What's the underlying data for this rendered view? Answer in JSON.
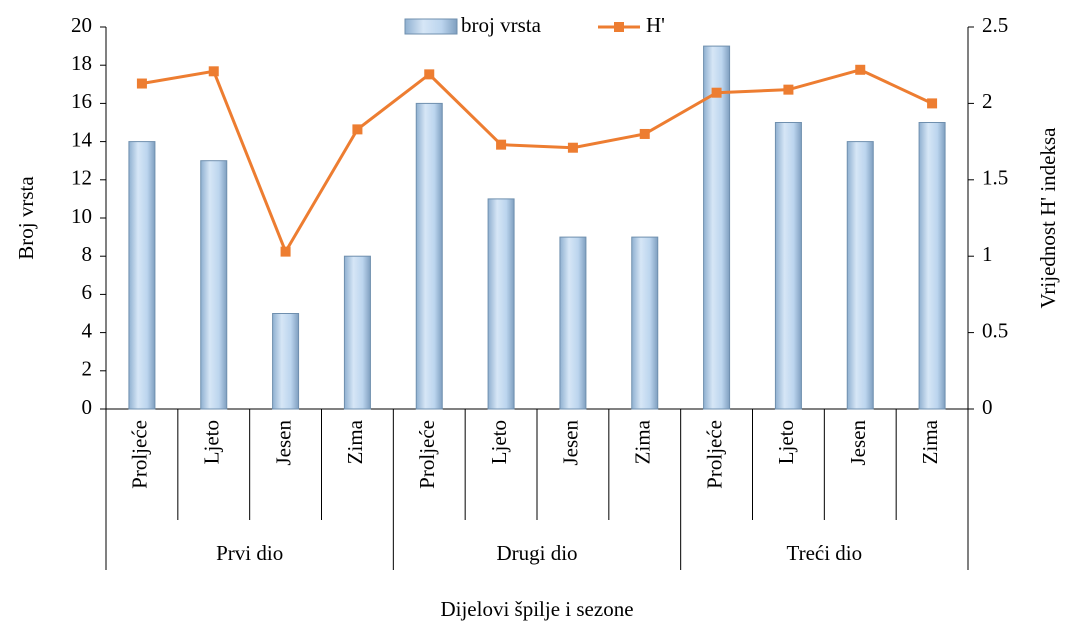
{
  "chart_data": {
    "type": "bar",
    "x_label": "Dijelovi špilje i sezone",
    "y_label": "Broj vrsta",
    "y2_label": "Vrijednost H' indeksa",
    "categories": [
      "Proljeće",
      "Ljeto",
      "Jesen",
      "Zima",
      "Proljeće",
      "Ljeto",
      "Jesen",
      "Zima",
      "Proljeće",
      "Ljeto",
      "Jesen",
      "Zima"
    ],
    "groups": [
      "Prvi dio",
      "Drugi dio",
      "Treći dio"
    ],
    "series": [
      {
        "name": "broj vrsta",
        "type": "bar",
        "color": "#bdd7ee",
        "values": [
          14,
          13,
          5,
          8,
          16,
          11,
          9,
          9,
          19,
          15,
          14,
          15
        ]
      },
      {
        "name": "H'",
        "type": "line",
        "axis": "y2",
        "color": "#ed7d31",
        "values": [
          2.13,
          2.21,
          1.03,
          1.83,
          2.19,
          1.73,
          1.71,
          1.8,
          2.07,
          2.09,
          2.22,
          2.0
        ]
      }
    ],
    "ylim": [
      0,
      20
    ],
    "yticks": [
      0,
      2,
      4,
      6,
      8,
      10,
      12,
      14,
      16,
      18,
      20
    ],
    "y2lim": [
      0,
      2.5
    ],
    "y2ticks": [
      0,
      0.5,
      1,
      1.5,
      2,
      2.5
    ],
    "legend": "top"
  }
}
